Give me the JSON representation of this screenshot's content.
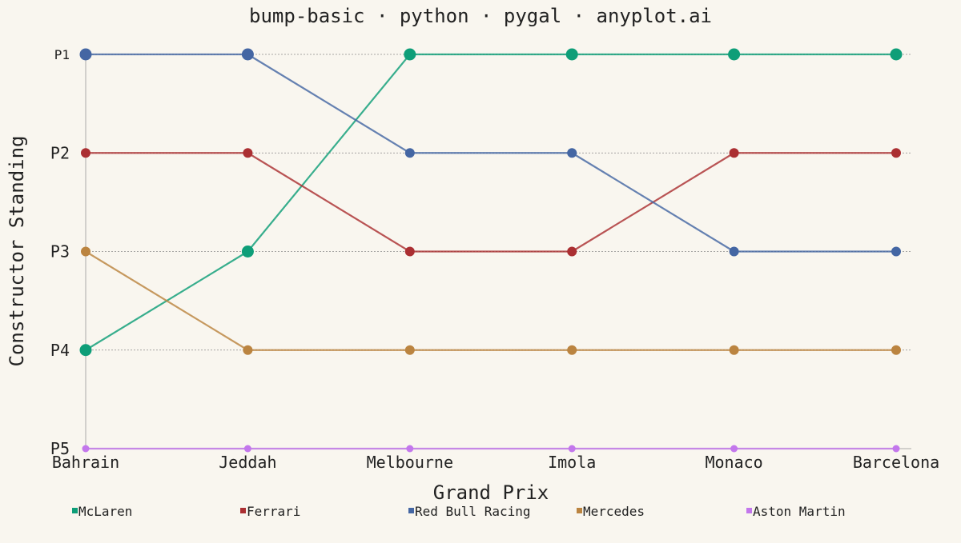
{
  "chart_data": {
    "type": "line",
    "subtype": "bump",
    "title": "bump-basic · python · pygal · anyplot.ai",
    "xlabel": "Grand Prix",
    "ylabel": "Constructor Standing",
    "categories": [
      "Bahrain",
      "Jeddah",
      "Melbourne",
      "Imola",
      "Monaco",
      "Barcelona"
    ],
    "y_ticks": [
      "P1",
      "P2",
      "P3",
      "P4",
      "P5"
    ],
    "ylim": [
      1,
      5
    ],
    "y_inverted": true,
    "grid": "horizontal dotted",
    "legend_position": "bottom",
    "series": [
      {
        "name": "McLaren",
        "color": "#0e9e78",
        "values": [
          4,
          3,
          1,
          1,
          1,
          1
        ]
      },
      {
        "name": "Ferrari",
        "color": "#ab2f32",
        "values": [
          2,
          2,
          3,
          3,
          2,
          2
        ]
      },
      {
        "name": "Red Bull Racing",
        "color": "#4466a3",
        "values": [
          1,
          1,
          2,
          2,
          3,
          3
        ]
      },
      {
        "name": "Mercedes",
        "color": "#bb8440",
        "values": [
          3,
          4,
          4,
          4,
          4,
          4
        ]
      },
      {
        "name": "Aston Martin",
        "color": "#c377ec",
        "values": [
          5,
          5,
          5,
          5,
          5,
          5
        ]
      }
    ]
  },
  "colors": {
    "background": "#f9f6ef",
    "grid": "#8a8a8a",
    "axis": "#aaaaaa",
    "text": "#222222"
  }
}
